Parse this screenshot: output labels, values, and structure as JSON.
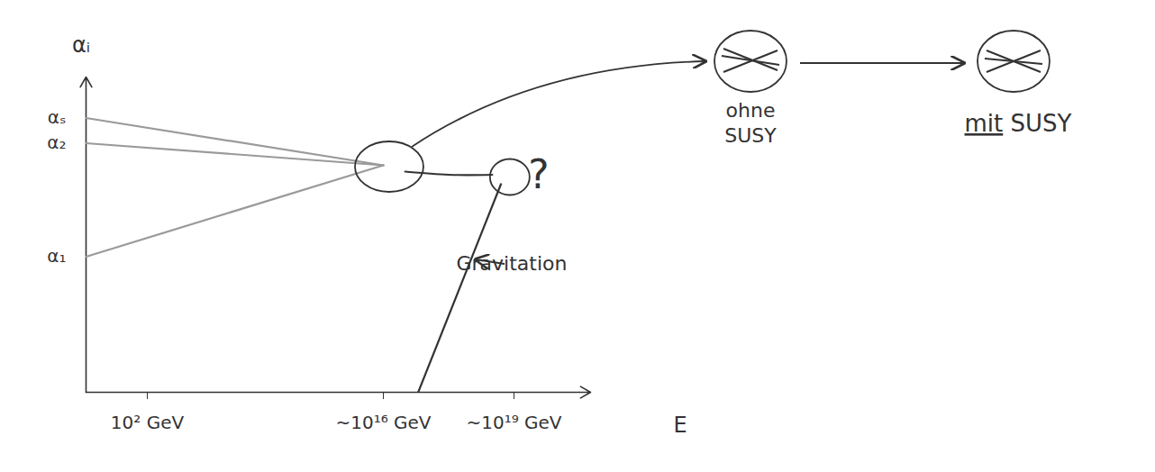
{
  "chart_data": {
    "type": "line",
    "y_label": "αᵢ",
    "x_label": "E",
    "xlim": [
      0,
      22
    ],
    "xticks": [
      {
        "value": 2,
        "label": "10² GeV"
      },
      {
        "value": 16,
        "label": "~10¹⁶ GeV"
      },
      {
        "value": 19,
        "label": "~10¹⁹ GeV"
      }
    ],
    "ylim": [
      0,
      100
    ],
    "yticks": [
      {
        "value": 87,
        "label": "αₛ"
      },
      {
        "value": 79,
        "label": "α₂"
      },
      {
        "value": 43,
        "label": "α₁"
      }
    ],
    "grid": false,
    "series": [
      {
        "color": "#9a9a9a",
        "x": [
          0,
          16
        ],
        "values": [
          87,
          72
        ]
      },
      {
        "color": "#9a9a9a",
        "x": [
          0,
          16
        ],
        "values": [
          79,
          72
        ]
      },
      {
        "color": "#9a9a9a",
        "x": [
          0,
          16
        ],
        "values": [
          43,
          72
        ]
      },
      {
        "color": "#333333",
        "x": [
          16.5,
          17.5,
          18.5
        ],
        "values": [
          70,
          69,
          69
        ]
      },
      {
        "color": "#333333",
        "x": [
          16.8,
          18.7
        ],
        "values": [
          0,
          66
        ]
      }
    ],
    "annotations": [
      {
        "text": "?"
      },
      {
        "text": "Gravitation"
      }
    ]
  },
  "insets": [
    {
      "label": "ohne SUSY",
      "lines_meet": false
    },
    {
      "label": "mit SUSY",
      "lines_meet": true,
      "underlined": "mit"
    }
  ]
}
